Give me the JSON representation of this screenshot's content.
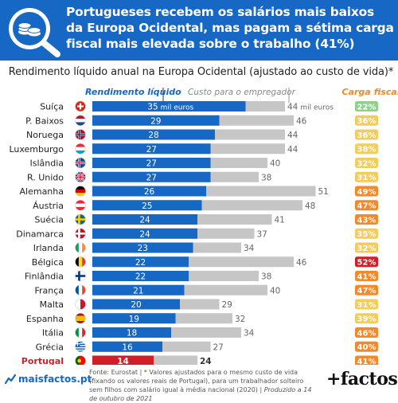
{
  "title": "Portugueses recebem os salários mais baixos da Europa Ocidental, mas pagam a sétima carga fiscal mais elevada sobre o trabalho (41%)",
  "subtitle": "Rendimento líquido anual na Europa Ocidental (ajustado ao custo de vida)*",
  "footer": {
    "logo": "maisfactos.pt",
    "source_prefix": "Fonte: Eurostat | * Valores ajustados para o mesmo custo de vida (fixando os valores reais de Portugal), para um trabalhador solteiro sem filhos com salário igual à média nacional (2020) | ",
    "source_italic": "Produzido a 14 de outubro de 2021",
    "brand": "+factos"
  },
  "colors": {
    "header": "#1767c5",
    "net_bar": "#1767c5",
    "net_bar_highlight": "#d21f27",
    "employer_bar": "#c6c6c6",
    "tax_high": "#d21f27",
    "tax_mid": "#f08a2c",
    "tax_low": "#f2cc5e",
    "tax_lowest": "#8fd08a"
  },
  "chart_data": {
    "type": "bar",
    "orientation": "horizontal",
    "stacked": "overlay",
    "series_headers": {
      "net": "Rendimento líquido",
      "employer": "Custo para o empregador",
      "tax": "Carga fiscal"
    },
    "first_row_unit": "mil euros",
    "highlight": "Portugal",
    "rows": [
      {
        "country": "Suíça",
        "net": 35,
        "employer": 44,
        "tax": "22%",
        "tax_tier": "lowest",
        "flag": "ch"
      },
      {
        "country": "P. Baixos",
        "net": 29,
        "employer": 46,
        "tax": "36%",
        "tax_tier": "low",
        "flag": "nl"
      },
      {
        "country": "Noruega",
        "net": 28,
        "employer": 44,
        "tax": "36%",
        "tax_tier": "low",
        "flag": "no"
      },
      {
        "country": "Luxemburgo",
        "net": 27,
        "employer": 44,
        "tax": "38%",
        "tax_tier": "low",
        "flag": "lu"
      },
      {
        "country": "Islândia",
        "net": 27,
        "employer": 40,
        "tax": "32%",
        "tax_tier": "low",
        "flag": "is"
      },
      {
        "country": "R. Unido",
        "net": 27,
        "employer": 38,
        "tax": "31%",
        "tax_tier": "low",
        "flag": "gb"
      },
      {
        "country": "Alemanha",
        "net": 26,
        "employer": 51,
        "tax": "49%",
        "tax_tier": "mid",
        "flag": "de"
      },
      {
        "country": "Áustria",
        "net": 25,
        "employer": 48,
        "tax": "47%",
        "tax_tier": "mid",
        "flag": "at"
      },
      {
        "country": "Suécia",
        "net": 24,
        "employer": 41,
        "tax": "43%",
        "tax_tier": "mid",
        "flag": "se"
      },
      {
        "country": "Dinamarca",
        "net": 24,
        "employer": 37,
        "tax": "35%",
        "tax_tier": "low",
        "flag": "dk"
      },
      {
        "country": "Irlanda",
        "net": 23,
        "employer": 34,
        "tax": "32%",
        "tax_tier": "low",
        "flag": "ie"
      },
      {
        "country": "Bélgica",
        "net": 22,
        "employer": 46,
        "tax": "52%",
        "tax_tier": "high",
        "flag": "be"
      },
      {
        "country": "Finlândia",
        "net": 22,
        "employer": 38,
        "tax": "41%",
        "tax_tier": "mid",
        "flag": "fi"
      },
      {
        "country": "França",
        "net": 21,
        "employer": 40,
        "tax": "47%",
        "tax_tier": "mid",
        "flag": "fr"
      },
      {
        "country": "Malta",
        "net": 20,
        "employer": 29,
        "tax": "31%",
        "tax_tier": "low",
        "flag": "mt"
      },
      {
        "country": "Espanha",
        "net": 19,
        "employer": 32,
        "tax": "39%",
        "tax_tier": "low",
        "flag": "es"
      },
      {
        "country": "Itália",
        "net": 18,
        "employer": 34,
        "tax": "46%",
        "tax_tier": "mid",
        "flag": "it"
      },
      {
        "country": "Grécia",
        "net": 16,
        "employer": 27,
        "tax": "40%",
        "tax_tier": "mid",
        "flag": "gr"
      },
      {
        "country": "Portugal",
        "net": 14,
        "employer": 24,
        "tax": "41%",
        "tax_tier": "mid",
        "flag": "pt"
      }
    ]
  }
}
